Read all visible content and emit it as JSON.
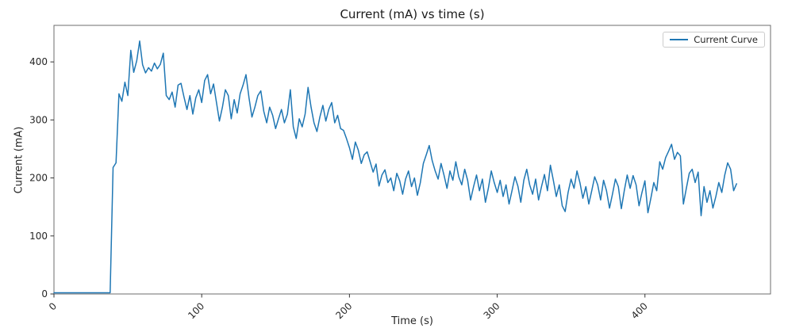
{
  "figure": {
    "background_color": "#ffffff",
    "spine_color": "#6e6e6e",
    "tick_color": "#333333",
    "text_color": "#262626"
  },
  "chart_data": {
    "type": "line",
    "title": "Current (mA) vs time (s)",
    "xlabel": "Time (s)",
    "ylabel": "Current (mA)",
    "xlim": [
      0,
      485
    ],
    "ylim": [
      0,
      463
    ],
    "x_ticks": [
      0,
      100,
      200,
      300,
      400
    ],
    "y_ticks": [
      0,
      100,
      200,
      300,
      400
    ],
    "x_tick_rotation_deg": 45,
    "grid": false,
    "legend": {
      "position": "upper right",
      "entries": [
        {
          "label": "Current Curve",
          "color": "#1f77b4"
        }
      ]
    },
    "series": [
      {
        "name": "Current Curve",
        "color": "#1f77b4",
        "line_width": 1.5,
        "x_start": 0,
        "x_step": 2,
        "values": [
          2,
          2,
          2,
          2,
          2,
          2,
          2,
          2,
          2,
          2,
          2,
          2,
          2,
          2,
          2,
          2,
          2,
          2,
          2,
          2,
          218,
          226,
          345,
          332,
          365,
          342,
          420,
          382,
          402,
          436,
          395,
          381,
          390,
          384,
          398,
          388,
          396,
          415,
          342,
          335,
          348,
          322,
          360,
          363,
          340,
          318,
          342,
          310,
          338,
          352,
          330,
          368,
          378,
          345,
          362,
          330,
          298,
          322,
          352,
          342,
          302,
          335,
          312,
          345,
          360,
          378,
          338,
          305,
          322,
          342,
          350,
          315,
          295,
          322,
          308,
          285,
          302,
          318,
          295,
          310,
          352,
          288,
          268,
          302,
          288,
          310,
          356,
          322,
          295,
          280,
          305,
          325,
          298,
          318,
          330,
          295,
          308,
          285,
          282,
          268,
          252,
          232,
          262,
          248,
          225,
          240,
          245,
          228,
          210,
          224,
          186,
          205,
          214,
          192,
          200,
          178,
          208,
          195,
          172,
          198,
          212,
          185,
          200,
          170,
          192,
          225,
          240,
          256,
          230,
          212,
          198,
          225,
          205,
          182,
          212,
          196,
          228,
          202,
          188,
          215,
          196,
          162,
          185,
          205,
          178,
          198,
          158,
          182,
          212,
          192,
          175,
          196,
          168,
          188,
          155,
          178,
          202,
          186,
          158,
          196,
          215,
          188,
          172,
          198,
          162,
          185,
          206,
          178,
          222,
          196,
          168,
          188,
          152,
          142,
          175,
          198,
          182,
          212,
          192,
          165,
          185,
          155,
          178,
          202,
          188,
          162,
          196,
          178,
          148,
          172,
          198,
          185,
          147,
          178,
          205,
          182,
          204,
          188,
          152,
          175,
          195,
          140,
          165,
          192,
          178,
          228,
          215,
          235,
          246,
          258,
          232,
          244,
          238,
          155,
          182,
          208,
          215,
          192,
          210,
          135,
          185,
          158,
          178,
          148,
          168,
          192,
          175,
          205,
          226,
          215,
          178,
          190
        ]
      }
    ]
  }
}
